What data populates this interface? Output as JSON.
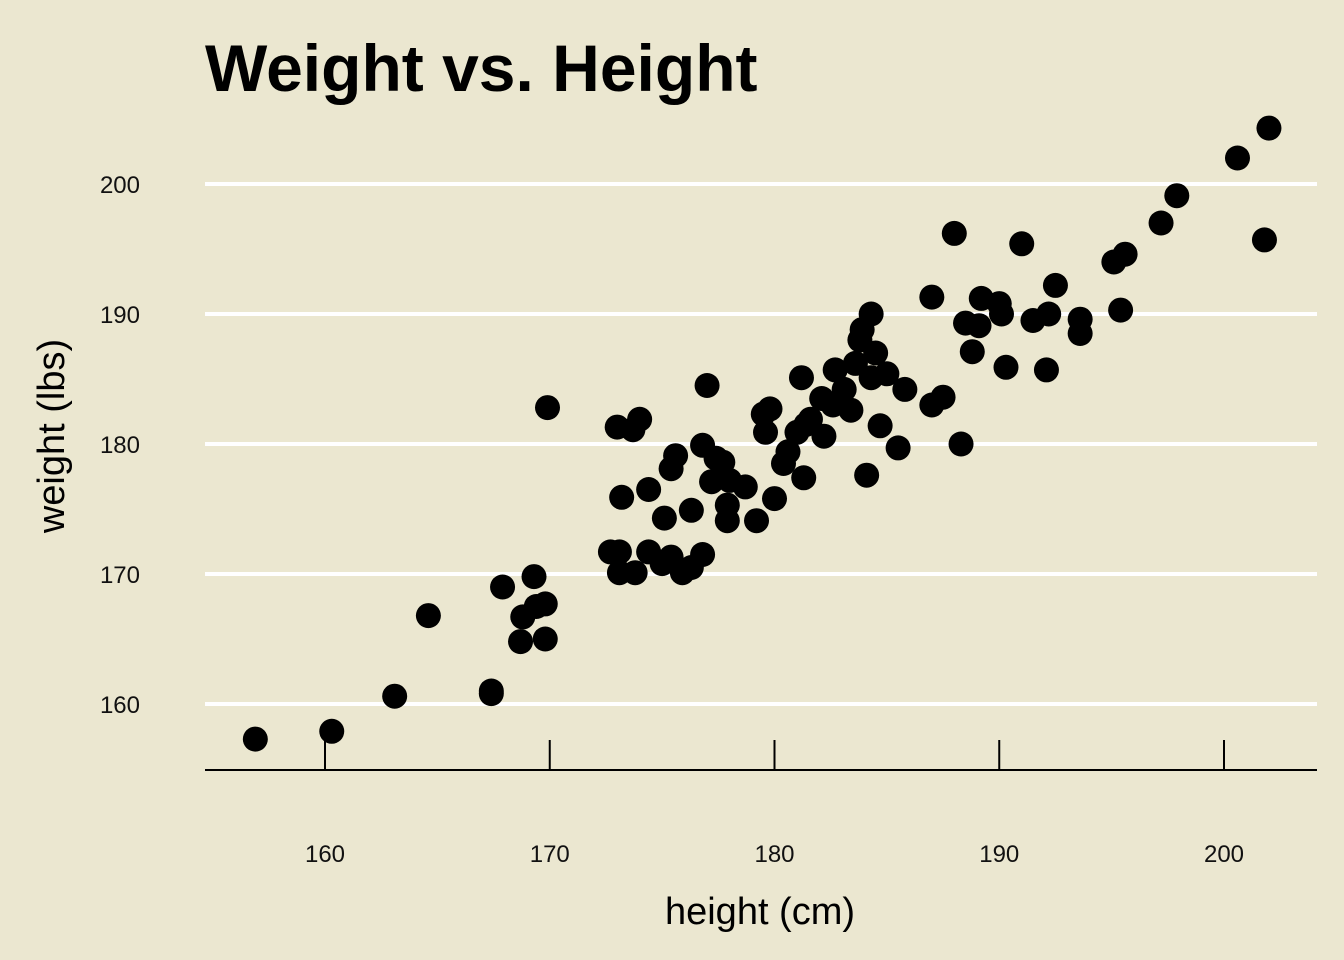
{
  "colors": {
    "background": "#ebe7d0",
    "gridline": "#ffffff",
    "point": "#000000",
    "axis": "#000000"
  },
  "chart_data": {
    "type": "scatter",
    "title": "Weight vs. Height",
    "xlabel": "height (cm)",
    "ylabel": "weight (lbs)",
    "xlim": [
      154.7,
      204.1
    ],
    "ylim": [
      155,
      211.3
    ],
    "x_ticks": [
      160,
      170,
      180,
      190,
      200
    ],
    "y_ticks": [
      160,
      170,
      180,
      190,
      200
    ],
    "x_tick_labels": [
      "160",
      "170",
      "180",
      "190",
      "200"
    ],
    "y_tick_labels": [
      "160",
      "170",
      "180",
      "190",
      "200"
    ],
    "grid": "horizontal major",
    "legend": "none",
    "series": [
      {
        "points": [
          [
            156.9,
            157.3
          ],
          [
            160.3,
            157.9
          ],
          [
            163.1,
            160.6
          ],
          [
            164.6,
            166.8
          ],
          [
            167.4,
            160.8
          ],
          [
            167.4,
            161.0
          ],
          [
            167.9,
            169.0
          ],
          [
            168.7,
            164.8
          ],
          [
            168.8,
            166.7
          ],
          [
            169.3,
            169.8
          ],
          [
            169.4,
            167.5
          ],
          [
            169.8,
            165.0
          ],
          [
            169.8,
            167.7
          ],
          [
            169.9,
            182.8
          ],
          [
            172.7,
            171.7
          ],
          [
            173.0,
            181.3
          ],
          [
            173.1,
            170.1
          ],
          [
            173.1,
            171.7
          ],
          [
            173.2,
            175.9
          ],
          [
            173.7,
            181.1
          ],
          [
            173.8,
            170.1
          ],
          [
            174.0,
            181.9
          ],
          [
            174.4,
            176.5
          ],
          [
            174.4,
            171.7
          ],
          [
            175.0,
            170.8
          ],
          [
            175.1,
            174.3
          ],
          [
            175.4,
            171.3
          ],
          [
            175.4,
            178.1
          ],
          [
            175.6,
            179.1
          ],
          [
            175.9,
            170.1
          ],
          [
            176.3,
            170.5
          ],
          [
            176.3,
            174.9
          ],
          [
            176.8,
            171.5
          ],
          [
            176.8,
            179.9
          ],
          [
            177.0,
            184.5
          ],
          [
            177.2,
            177.1
          ],
          [
            177.4,
            178.9
          ],
          [
            177.7,
            178.6
          ],
          [
            177.9,
            175.3
          ],
          [
            177.9,
            174.1
          ],
          [
            178.0,
            177.2
          ],
          [
            178.7,
            176.7
          ],
          [
            179.2,
            174.1
          ],
          [
            179.5,
            182.3
          ],
          [
            179.6,
            180.9
          ],
          [
            179.8,
            182.7
          ],
          [
            180.0,
            175.8
          ],
          [
            180.4,
            178.5
          ],
          [
            180.6,
            179.4
          ],
          [
            181.0,
            180.9
          ],
          [
            181.2,
            185.1
          ],
          [
            181.3,
            177.4
          ],
          [
            181.4,
            181.5
          ],
          [
            181.6,
            181.9
          ],
          [
            182.1,
            183.5
          ],
          [
            182.2,
            180.6
          ],
          [
            182.6,
            183.0
          ],
          [
            182.7,
            185.7
          ],
          [
            183.1,
            184.2
          ],
          [
            183.4,
            182.6
          ],
          [
            183.6,
            186.2
          ],
          [
            183.8,
            188.0
          ],
          [
            183.9,
            188.8
          ],
          [
            184.1,
            177.6
          ],
          [
            184.3,
            190.0
          ],
          [
            184.3,
            185.1
          ],
          [
            184.5,
            187.0
          ],
          [
            184.7,
            181.4
          ],
          [
            185.0,
            185.4
          ],
          [
            185.5,
            179.7
          ],
          [
            185.8,
            184.2
          ],
          [
            187.0,
            183.0
          ],
          [
            187.0,
            191.3
          ],
          [
            187.5,
            183.6
          ],
          [
            188.0,
            196.2
          ],
          [
            188.3,
            180.0
          ],
          [
            188.5,
            189.3
          ],
          [
            188.8,
            187.1
          ],
          [
            189.1,
            189.1
          ],
          [
            189.2,
            191.2
          ],
          [
            190.0,
            190.8
          ],
          [
            190.1,
            190.0
          ],
          [
            190.3,
            185.9
          ],
          [
            191.0,
            195.4
          ],
          [
            191.5,
            189.5
          ],
          [
            192.1,
            185.7
          ],
          [
            192.2,
            190.0
          ],
          [
            192.5,
            192.2
          ],
          [
            193.6,
            189.6
          ],
          [
            193.6,
            188.5
          ],
          [
            195.1,
            194.0
          ],
          [
            195.4,
            190.3
          ],
          [
            195.6,
            194.6
          ],
          [
            197.2,
            197.0
          ],
          [
            197.9,
            199.1
          ],
          [
            200.6,
            202.0
          ],
          [
            201.8,
            195.7
          ],
          [
            202.0,
            204.3
          ]
        ]
      }
    ]
  }
}
